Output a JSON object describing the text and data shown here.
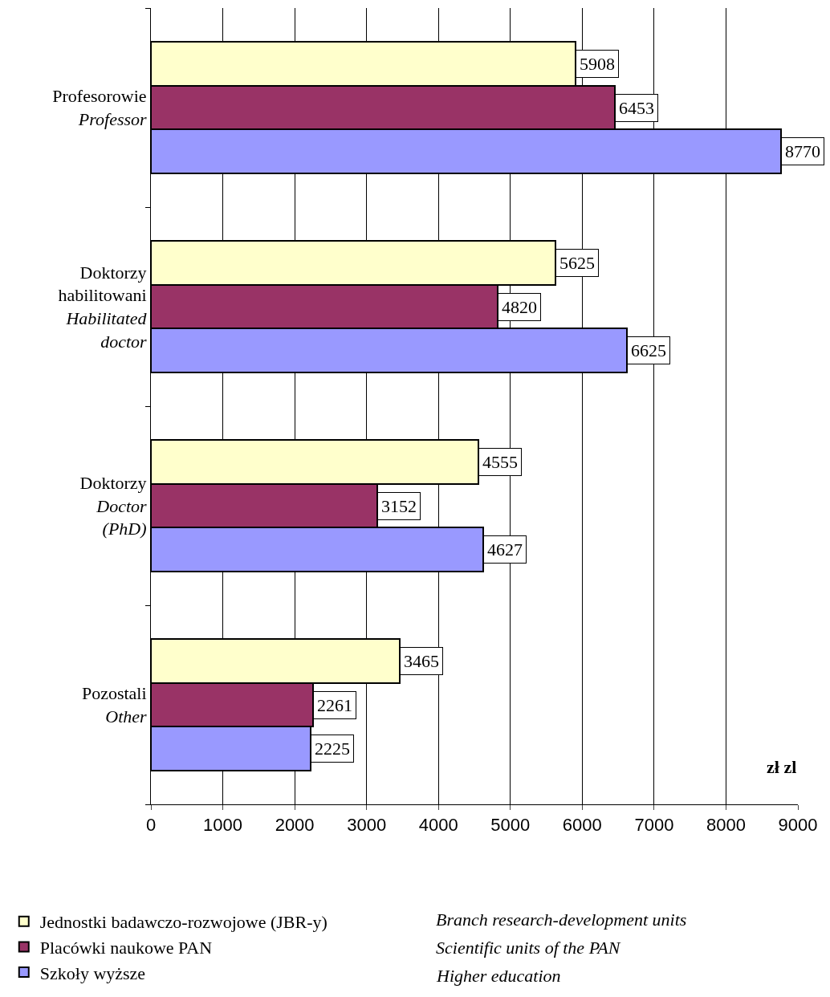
{
  "chart_data": {
    "type": "bar",
    "orientation": "horizontal",
    "categories": [
      "Profesorowie\n\nProfessor",
      "Doktorzy\nhabilitowani\n\nHabilitated\ndoctor",
      "Doktorzy\n\nDoctor\n(PhD)",
      "Pozostali\n\nOther"
    ],
    "series": [
      {
        "name": "Jednostki badawczo-rozwojowe (JBR-y)",
        "color": "#ffffcc",
        "values": [
          5908,
          5625,
          4555,
          3465
        ]
      },
      {
        "name": "Placówki naukowe PAN",
        "color": "#993366",
        "values": [
          6453,
          4820,
          3152,
          2261
        ]
      },
      {
        "name": "Szkoły wyższe",
        "color": "#9999ff",
        "values": [
          8770,
          6625,
          4627,
          2225
        ]
      }
    ],
    "xlim": [
      0,
      9000
    ],
    "xticks": [
      0,
      1000,
      2000,
      3000,
      4000,
      5000,
      6000,
      7000,
      8000,
      9000
    ],
    "xlabel": "zł zl",
    "annotations": [
      "Branch research-development units",
      "Scientific units of the PAN",
      "Higher education"
    ],
    "data_labels": true,
    "grid": "x",
    "legend": "bottom left"
  }
}
